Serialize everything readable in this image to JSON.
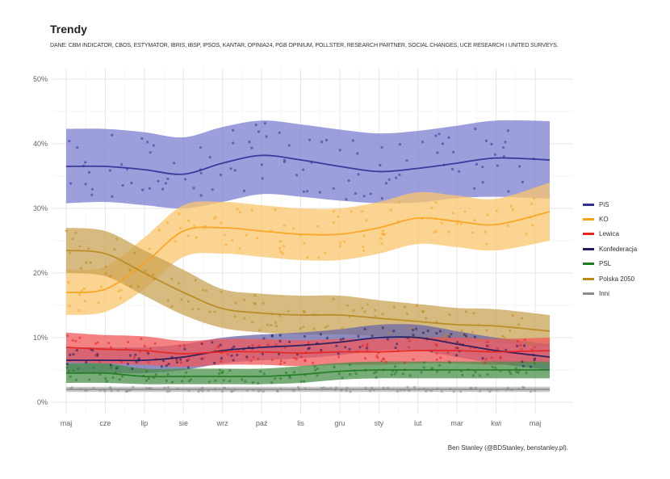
{
  "header": {
    "title": "Trendy",
    "subtitle": "DANE: CBM INDICATOR, CBOS, ESTYMATOR, IBRIS, IBSP, IPSOS, KANTAR, OPINIA24, PGB OPINIUM, POLLSTER, RESEARCH PARTNER, SOCIAL CHANGES, UCE RESEARCH I UNITED SURVEYS."
  },
  "caption": "Ben Stanley (@BDStanley, benstanley.pl).",
  "chart_data": {
    "type": "line",
    "title": "Trendy",
    "xlabel": "",
    "ylabel": "",
    "categories": [
      "maj",
      "cze",
      "lip",
      "sie",
      "wrz",
      "paź",
      "lis",
      "gru",
      "sty",
      "lut",
      "mar",
      "kwi",
      "maj"
    ],
    "ylim": [
      0,
      50
    ],
    "yticks": [
      "0%",
      "10%",
      "20%",
      "30%",
      "40%",
      "50%"
    ],
    "grid": true,
    "legend_position": "right",
    "series": [
      {
        "name": "PiS",
        "color": "#2e3192",
        "band_color": "#7b7fd0",
        "values": [
          36.5,
          36.5,
          36.0,
          35.3,
          37.0,
          38.2,
          37.5,
          36.5,
          35.7,
          36.2,
          37.0,
          37.8,
          37.5
        ],
        "lower": [
          30.8,
          31.0,
          30.5,
          30.0,
          31.0,
          32.2,
          31.8,
          31.2,
          30.8,
          30.9,
          31.6,
          31.8,
          31.5
        ],
        "upper": [
          42.3,
          42.3,
          41.8,
          41.0,
          42.6,
          43.6,
          43.0,
          42.2,
          41.6,
          42.0,
          42.8,
          43.6,
          43.5
        ]
      },
      {
        "name": "KO",
        "color": "#f7a21b",
        "band_color": "#fbc56e",
        "values": [
          17.0,
          17.5,
          21.5,
          26.5,
          27.0,
          26.5,
          26.0,
          26.0,
          27.0,
          28.5,
          28.0,
          27.5,
          29.5
        ],
        "lower": [
          13.5,
          14.0,
          17.5,
          22.5,
          23.0,
          22.5,
          22.0,
          22.0,
          23.0,
          24.5,
          24.0,
          23.5,
          25.0
        ],
        "upper": [
          20.5,
          21.0,
          25.5,
          30.5,
          31.0,
          30.5,
          30.0,
          30.0,
          31.0,
          32.5,
          32.0,
          31.5,
          34.0
        ]
      },
      {
        "name": "Lewica",
        "color": "#e52521",
        "band_color": "#f0585a",
        "values": [
          8.5,
          8.2,
          8.0,
          7.5,
          7.8,
          7.8,
          7.6,
          7.8,
          7.8,
          8.0,
          8.0,
          7.8,
          8.0
        ],
        "lower": [
          6.2,
          6.0,
          5.8,
          5.5,
          5.8,
          5.8,
          5.6,
          5.8,
          5.8,
          6.0,
          6.0,
          5.8,
          6.0
        ],
        "upper": [
          10.8,
          10.4,
          10.2,
          9.5,
          9.8,
          9.8,
          9.6,
          9.8,
          9.8,
          10.0,
          10.0,
          9.8,
          10.0
        ]
      },
      {
        "name": "Konfederacja",
        "color": "#1f1a5e",
        "band_color": "#6a66a8",
        "values": [
          6.5,
          6.5,
          6.5,
          7.0,
          8.0,
          8.5,
          8.8,
          9.3,
          10.0,
          10.0,
          9.0,
          8.0,
          7.0
        ],
        "lower": [
          4.5,
          4.5,
          4.5,
          5.0,
          6.0,
          6.5,
          6.8,
          7.3,
          8.0,
          8.0,
          7.0,
          6.0,
          5.0
        ],
        "upper": [
          8.5,
          8.5,
          8.5,
          9.0,
          10.0,
          10.5,
          10.8,
          11.3,
          12.0,
          12.0,
          11.0,
          10.0,
          9.0
        ]
      },
      {
        "name": "PSL",
        "color": "#1e7b1e",
        "band_color": "#4a8f4a",
        "values": [
          4.5,
          4.5,
          4.0,
          4.0,
          4.0,
          4.0,
          4.3,
          4.8,
          5.0,
          5.0,
          5.0,
          5.0,
          5.0
        ],
        "lower": [
          3.0,
          3.0,
          2.8,
          2.8,
          2.8,
          2.8,
          3.0,
          3.5,
          3.7,
          3.7,
          3.7,
          3.7,
          3.7
        ],
        "upper": [
          6.0,
          6.0,
          5.2,
          5.2,
          5.2,
          5.2,
          5.6,
          6.1,
          6.3,
          6.3,
          6.3,
          6.3,
          6.3
        ]
      },
      {
        "name": "Polska 2050",
        "color": "#b88a1e",
        "band_color": "#c9a355",
        "values": [
          23.5,
          23.0,
          20.0,
          17.0,
          14.5,
          13.8,
          13.5,
          13.5,
          13.0,
          12.5,
          12.0,
          11.8,
          11.0
        ],
        "lower": [
          20.0,
          19.5,
          16.5,
          13.5,
          11.5,
          10.8,
          10.5,
          10.5,
          10.2,
          9.8,
          9.4,
          9.2,
          8.5
        ],
        "upper": [
          27.0,
          26.5,
          23.5,
          20.5,
          17.5,
          16.8,
          16.5,
          16.5,
          15.8,
          15.2,
          14.6,
          14.4,
          13.5
        ]
      },
      {
        "name": "Inni",
        "color": "#8c8c8c",
        "band_color": "#b5b5b5",
        "values": [
          2.0,
          2.0,
          2.0,
          2.0,
          2.0,
          2.0,
          2.0,
          2.0,
          2.0,
          2.0,
          2.0,
          2.0,
          2.0
        ],
        "lower": [
          1.6,
          1.6,
          1.6,
          1.6,
          1.6,
          1.6,
          1.6,
          1.6,
          1.6,
          1.6,
          1.6,
          1.6,
          1.6
        ],
        "upper": [
          2.4,
          2.4,
          2.4,
          2.4,
          2.4,
          2.4,
          2.4,
          2.4,
          2.4,
          2.4,
          2.4,
          2.4,
          2.4
        ]
      }
    ]
  }
}
